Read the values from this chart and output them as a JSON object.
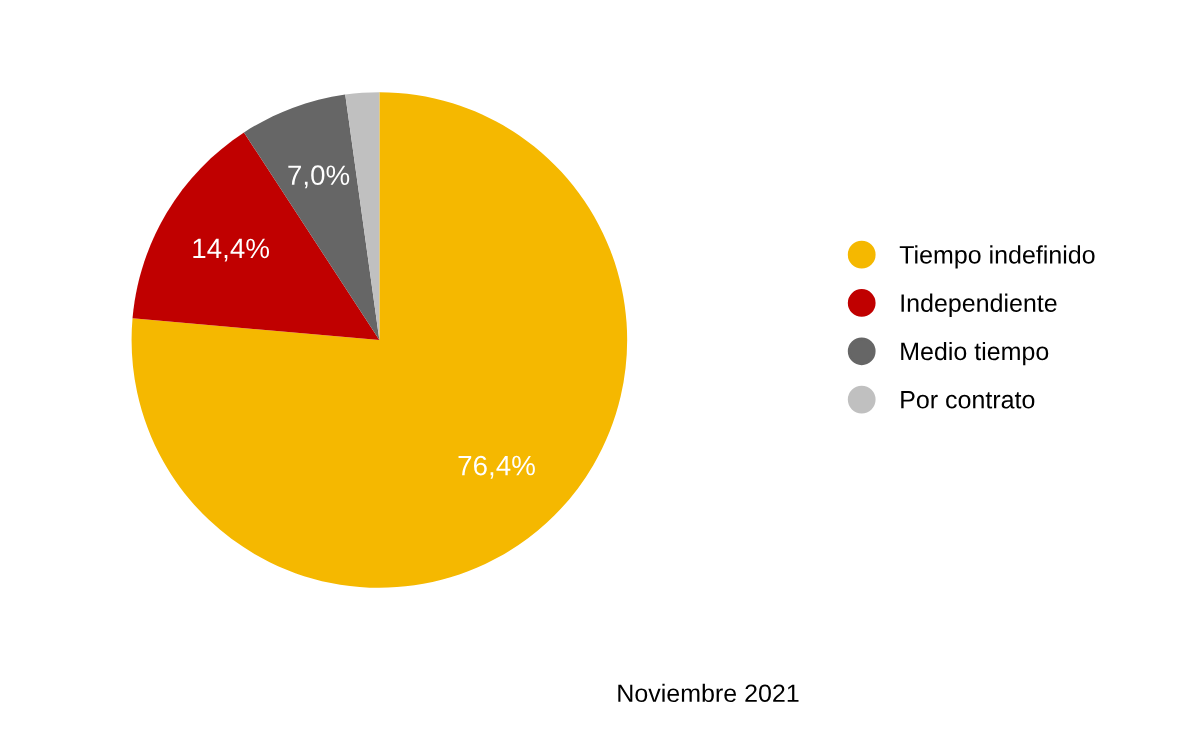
{
  "chart_data": {
    "type": "pie",
    "categories": [
      "Tiempo indefinido",
      "Independiente",
      "Medio tiempo",
      "Por contrato"
    ],
    "values": [
      76.4,
      14.4,
      7.0,
      2.2
    ],
    "colors": [
      "#f5b800",
      "#c00000",
      "#666666",
      "#c0c0c0"
    ],
    "value_labels": [
      "76,4%",
      "14,4%",
      "7,0%",
      null
    ],
    "legend": "right",
    "annotations": [
      "Noviembre 2021"
    ]
  }
}
